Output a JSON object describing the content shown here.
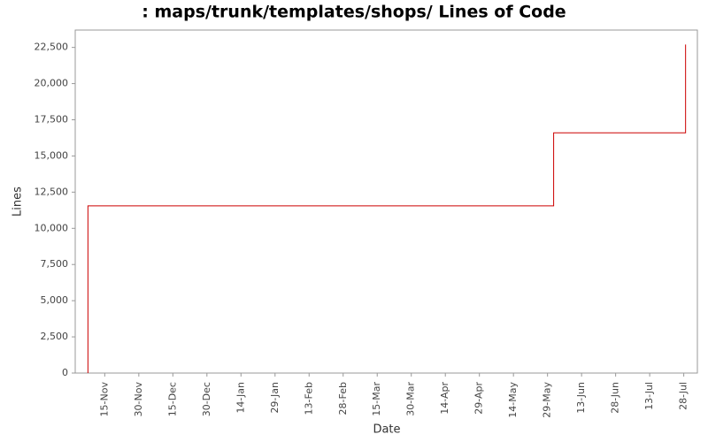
{
  "chart_data": {
    "type": "line",
    "title": ": maps/trunk/templates/shops/ Lines of Code",
    "x_label": "Date",
    "y_label": "Lines",
    "x": [
      -7.4,
      -7.4,
      197.7,
      197.7,
      255.8,
      255.8
    ],
    "series": [
      {
        "color": "#cc0000",
        "values": [
          0,
          11550,
          11550,
          16600,
          16600,
          22700
        ]
      }
    ],
    "xlim": [
      -13,
      261
    ],
    "xticks": [
      {
        "value": 0,
        "label": "15-Nov"
      },
      {
        "value": 15,
        "label": "30-Nov"
      },
      {
        "value": 30,
        "label": "15-Dec"
      },
      {
        "value": 45,
        "label": "30-Dec"
      },
      {
        "value": 60,
        "label": "14-Jan"
      },
      {
        "value": 75,
        "label": "29-Jan"
      },
      {
        "value": 90,
        "label": "13-Feb"
      },
      {
        "value": 105,
        "label": "28-Feb"
      },
      {
        "value": 120,
        "label": "15-Mar"
      },
      {
        "value": 135,
        "label": "30-Mar"
      },
      {
        "value": 150,
        "label": "14-Apr"
      },
      {
        "value": 165,
        "label": "29-Apr"
      },
      {
        "value": 180,
        "label": "14-May"
      },
      {
        "value": 195,
        "label": "29-May"
      },
      {
        "value": 210,
        "label": "13-Jun"
      },
      {
        "value": 225,
        "label": "28-Jun"
      },
      {
        "value": 240,
        "label": "13-Jul"
      },
      {
        "value": 255,
        "label": "28-Jul"
      }
    ],
    "ylim": [
      0,
      23700
    ],
    "yticks": [
      0,
      {
        "value": 2500,
        "label": "2,500"
      },
      {
        "value": 5000,
        "label": "5,000"
      },
      {
        "value": 7500,
        "label": "7,500"
      },
      {
        "value": 10000,
        "label": "10,000"
      },
      {
        "value": 12500,
        "label": "12,500"
      },
      {
        "value": 15000,
        "label": "15,000"
      },
      {
        "value": 17500,
        "label": "17,500"
      },
      {
        "value": 20000,
        "label": "20,000"
      },
      {
        "value": 22500,
        "label": "22,500"
      }
    ],
    "grid": false
  }
}
